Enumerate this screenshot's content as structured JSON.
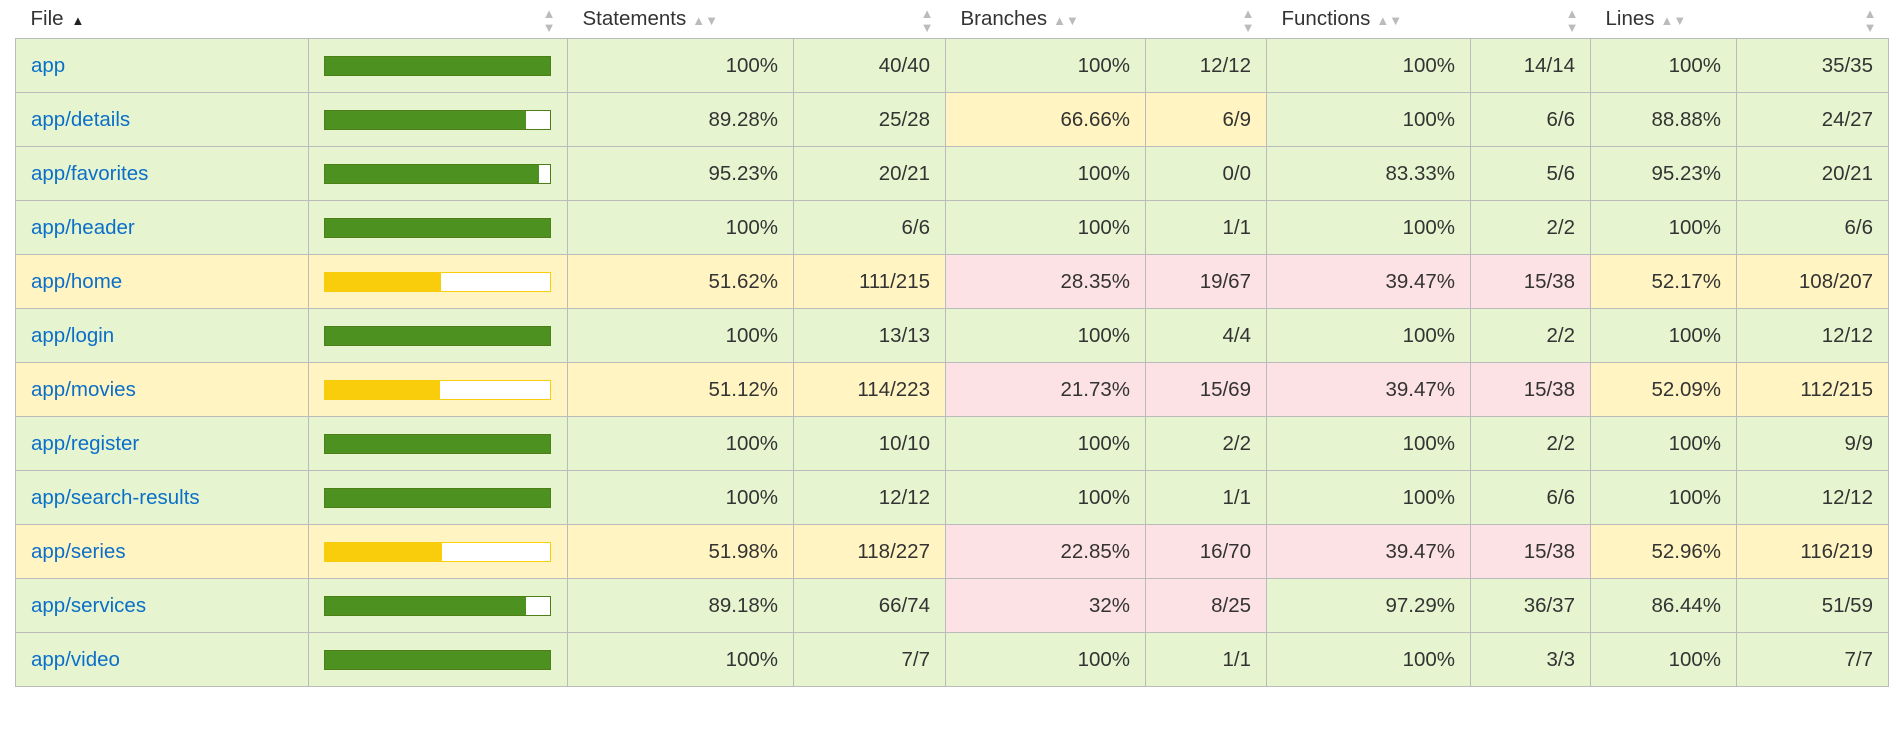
{
  "headers": {
    "file": "File",
    "statements": "Statements",
    "branches": "Branches",
    "functions": "Functions",
    "lines": "Lines"
  },
  "colors": {
    "high": "#e6f5d0",
    "medium": "#fff4c2",
    "low": "#fce1e5",
    "bar_green": "#4d9221",
    "bar_yellow": "#f9cd0b",
    "link": "#0b6fc9"
  },
  "rows": [
    {
      "file": "app",
      "bar": 100,
      "bar_color": "g",
      "st_pct": "100%",
      "st_frac": "40/40",
      "st_lvl": "high",
      "br_pct": "100%",
      "br_frac": "12/12",
      "br_lvl": "high",
      "fn_pct": "100%",
      "fn_frac": "14/14",
      "fn_lvl": "high",
      "ln_pct": "100%",
      "ln_frac": "35/35",
      "ln_lvl": "high"
    },
    {
      "file": "app/details",
      "bar": 89.28,
      "bar_color": "g",
      "st_pct": "89.28%",
      "st_frac": "25/28",
      "st_lvl": "high",
      "br_pct": "66.66%",
      "br_frac": "6/9",
      "br_lvl": "medium",
      "fn_pct": "100%",
      "fn_frac": "6/6",
      "fn_lvl": "high",
      "ln_pct": "88.88%",
      "ln_frac": "24/27",
      "ln_lvl": "high"
    },
    {
      "file": "app/favorites",
      "bar": 95.23,
      "bar_color": "g",
      "st_pct": "95.23%",
      "st_frac": "20/21",
      "st_lvl": "high",
      "br_pct": "100%",
      "br_frac": "0/0",
      "br_lvl": "high",
      "fn_pct": "83.33%",
      "fn_frac": "5/6",
      "fn_lvl": "high",
      "ln_pct": "95.23%",
      "ln_frac": "20/21",
      "ln_lvl": "high"
    },
    {
      "file": "app/header",
      "bar": 100,
      "bar_color": "g",
      "st_pct": "100%",
      "st_frac": "6/6",
      "st_lvl": "high",
      "br_pct": "100%",
      "br_frac": "1/1",
      "br_lvl": "high",
      "fn_pct": "100%",
      "fn_frac": "2/2",
      "fn_lvl": "high",
      "ln_pct": "100%",
      "ln_frac": "6/6",
      "ln_lvl": "high"
    },
    {
      "file": "app/home",
      "bar": 51.62,
      "bar_color": "y",
      "st_pct": "51.62%",
      "st_frac": "111/215",
      "st_lvl": "medium",
      "br_pct": "28.35%",
      "br_frac": "19/67",
      "br_lvl": "low",
      "fn_pct": "39.47%",
      "fn_frac": "15/38",
      "fn_lvl": "low",
      "ln_pct": "52.17%",
      "ln_frac": "108/207",
      "ln_lvl": "medium"
    },
    {
      "file": "app/login",
      "bar": 100,
      "bar_color": "g",
      "st_pct": "100%",
      "st_frac": "13/13",
      "st_lvl": "high",
      "br_pct": "100%",
      "br_frac": "4/4",
      "br_lvl": "high",
      "fn_pct": "100%",
      "fn_frac": "2/2",
      "fn_lvl": "high",
      "ln_pct": "100%",
      "ln_frac": "12/12",
      "ln_lvl": "high"
    },
    {
      "file": "app/movies",
      "bar": 51.12,
      "bar_color": "y",
      "st_pct": "51.12%",
      "st_frac": "114/223",
      "st_lvl": "medium",
      "br_pct": "21.73%",
      "br_frac": "15/69",
      "br_lvl": "low",
      "fn_pct": "39.47%",
      "fn_frac": "15/38",
      "fn_lvl": "low",
      "ln_pct": "52.09%",
      "ln_frac": "112/215",
      "ln_lvl": "medium"
    },
    {
      "file": "app/register",
      "bar": 100,
      "bar_color": "g",
      "st_pct": "100%",
      "st_frac": "10/10",
      "st_lvl": "high",
      "br_pct": "100%",
      "br_frac": "2/2",
      "br_lvl": "high",
      "fn_pct": "100%",
      "fn_frac": "2/2",
      "fn_lvl": "high",
      "ln_pct": "100%",
      "ln_frac": "9/9",
      "ln_lvl": "high"
    },
    {
      "file": "app/search-results",
      "bar": 100,
      "bar_color": "g",
      "st_pct": "100%",
      "st_frac": "12/12",
      "st_lvl": "high",
      "br_pct": "100%",
      "br_frac": "1/1",
      "br_lvl": "high",
      "fn_pct": "100%",
      "fn_frac": "6/6",
      "fn_lvl": "high",
      "ln_pct": "100%",
      "ln_frac": "12/12",
      "ln_lvl": "high"
    },
    {
      "file": "app/series",
      "bar": 51.98,
      "bar_color": "y",
      "st_pct": "51.98%",
      "st_frac": "118/227",
      "st_lvl": "medium",
      "br_pct": "22.85%",
      "br_frac": "16/70",
      "br_lvl": "low",
      "fn_pct": "39.47%",
      "fn_frac": "15/38",
      "fn_lvl": "low",
      "ln_pct": "52.96%",
      "ln_frac": "116/219",
      "ln_lvl": "medium"
    },
    {
      "file": "app/services",
      "bar": 89.18,
      "bar_color": "g",
      "st_pct": "89.18%",
      "st_frac": "66/74",
      "st_lvl": "high",
      "br_pct": "32%",
      "br_frac": "8/25",
      "br_lvl": "low",
      "fn_pct": "97.29%",
      "fn_frac": "36/37",
      "fn_lvl": "high",
      "ln_pct": "86.44%",
      "ln_frac": "51/59",
      "ln_lvl": "high"
    },
    {
      "file": "app/video",
      "bar": 100,
      "bar_color": "g",
      "st_pct": "100%",
      "st_frac": "7/7",
      "st_lvl": "high",
      "br_pct": "100%",
      "br_frac": "1/1",
      "br_lvl": "high",
      "fn_pct": "100%",
      "fn_frac": "3/3",
      "fn_lvl": "high",
      "ln_pct": "100%",
      "ln_frac": "7/7",
      "ln_lvl": "high"
    }
  ]
}
